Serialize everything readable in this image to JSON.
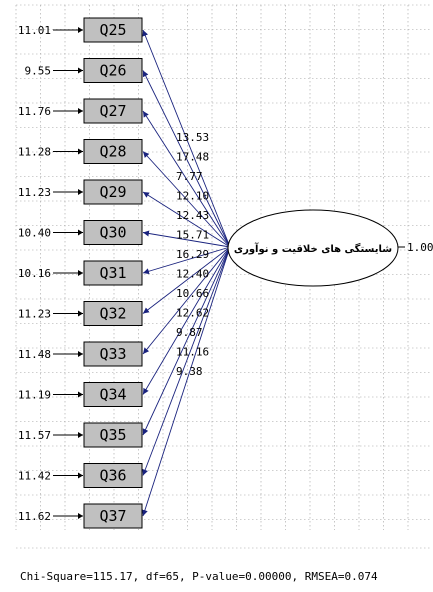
{
  "latent": {
    "label": "شایستگی های خلاقیت و نوآوری",
    "variance": "1.00"
  },
  "items": [
    {
      "name": "Q25",
      "error": "11.01",
      "coef": "13.53"
    },
    {
      "name": "Q26",
      "error": "9.55",
      "coef": "17.48"
    },
    {
      "name": "Q27",
      "error": "11.76",
      "coef": "7.77"
    },
    {
      "name": "Q28",
      "error": "11.28",
      "coef": "12.10"
    },
    {
      "name": "Q29",
      "error": "11.23",
      "coef": "12.43"
    },
    {
      "name": "Q30",
      "error": "10.40",
      "coef": "15.71"
    },
    {
      "name": "Q31",
      "error": "10.16",
      "coef": "16.29"
    },
    {
      "name": "Q32",
      "error": "11.23",
      "coef": "12.40"
    },
    {
      "name": "Q33",
      "error": "11.48",
      "coef": "10.66"
    },
    {
      "name": "Q34",
      "error": "11.19",
      "coef": "12.62"
    },
    {
      "name": "Q35",
      "error": "11.57",
      "coef": "9.87"
    },
    {
      "name": "Q36",
      "error": "11.42",
      "coef": "11.16"
    },
    {
      "name": "Q37",
      "error": "11.62",
      "coef": "9.38"
    }
  ],
  "fit": "Chi-Square=115.17, df=65, P-value=0.00000, RMSEA=0.074",
  "colors": {
    "path": "#1a237e",
    "box": "#c0c0c0",
    "grid": "#a0a0a0"
  }
}
